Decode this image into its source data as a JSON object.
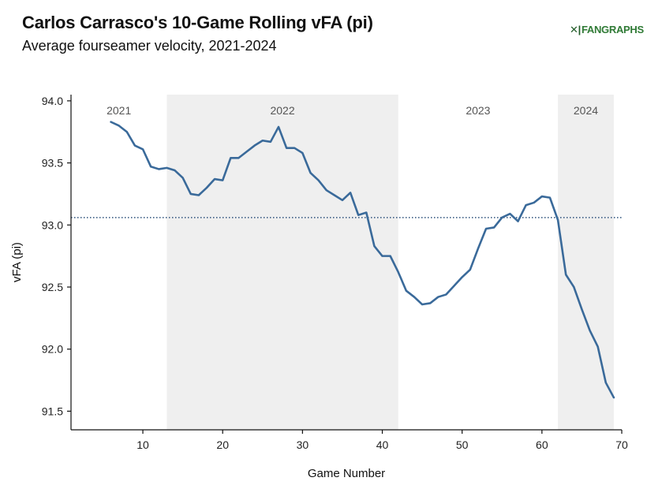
{
  "header": {
    "title": "Carlos Carrasco's 10-Game Rolling vFA (pi)",
    "subtitle": "Average fourseamer velocity, 2021-2024",
    "logo_text": "FANGRAPHS",
    "logo_mark": "✕|"
  },
  "colors": {
    "line": "#3a6a9a",
    "shade": "#efefef",
    "reference": "#2b4f7a",
    "axis": "#111111"
  },
  "chart_data": {
    "type": "line",
    "title": "Carlos Carrasco's 10-Game Rolling vFA (pi)",
    "subtitle": "Average fourseamer velocity, 2021-2024",
    "xlabel": "Game Number",
    "ylabel": "vFA (pi)",
    "xlim": [
      1,
      70
    ],
    "ylim": [
      91.35,
      94.05
    ],
    "xticks": [
      10,
      20,
      30,
      40,
      50,
      60,
      70
    ],
    "yticks": [
      91.5,
      92.0,
      92.5,
      93.0,
      93.5,
      94.0
    ],
    "ytick_labels": [
      "91.5",
      "92.0",
      "92.5",
      "93.0",
      "93.5",
      "94.0"
    ],
    "reference_line": {
      "y": 93.06,
      "style": "dotted"
    },
    "periods": [
      {
        "label": "2021",
        "start": 1,
        "end": 13,
        "shaded": false
      },
      {
        "label": "2022",
        "start": 13,
        "end": 42,
        "shaded": true
      },
      {
        "label": "2023",
        "start": 42,
        "end": 62,
        "shaded": false
      },
      {
        "label": "2024",
        "start": 62,
        "end": 69,
        "shaded": true
      }
    ],
    "series": [
      {
        "x": [
          6,
          7,
          8,
          9,
          10,
          11,
          12,
          13,
          14,
          15,
          16,
          17,
          18,
          19,
          20,
          21,
          22,
          23,
          24,
          25,
          26,
          27,
          28,
          29,
          30,
          31,
          32,
          33,
          34,
          35,
          36,
          37,
          38,
          39,
          40,
          41,
          42,
          43,
          44,
          45,
          46,
          47,
          48,
          49,
          50,
          51,
          52,
          53,
          54,
          55,
          56,
          57,
          58,
          59,
          60,
          61,
          62,
          63,
          64,
          65,
          66,
          67,
          68,
          69
        ],
        "values": [
          93.83,
          93.8,
          93.75,
          93.64,
          93.61,
          93.47,
          93.45,
          93.46,
          93.44,
          93.38,
          93.25,
          93.24,
          93.3,
          93.37,
          93.36,
          93.54,
          93.54,
          93.59,
          93.64,
          93.68,
          93.67,
          93.79,
          93.62,
          93.62,
          93.58,
          93.42,
          93.36,
          93.28,
          93.24,
          93.2,
          93.26,
          93.08,
          93.1,
          92.83,
          92.75,
          92.75,
          92.62,
          92.47,
          92.42,
          92.36,
          92.37,
          92.42,
          92.44,
          92.51,
          92.58,
          92.64,
          92.81,
          92.97,
          92.98,
          93.06,
          93.09,
          93.03,
          93.16,
          93.18,
          93.23,
          93.22,
          93.04,
          92.6,
          92.5,
          92.32,
          92.15,
          92.02,
          91.73,
          91.61
        ]
      }
    ]
  }
}
